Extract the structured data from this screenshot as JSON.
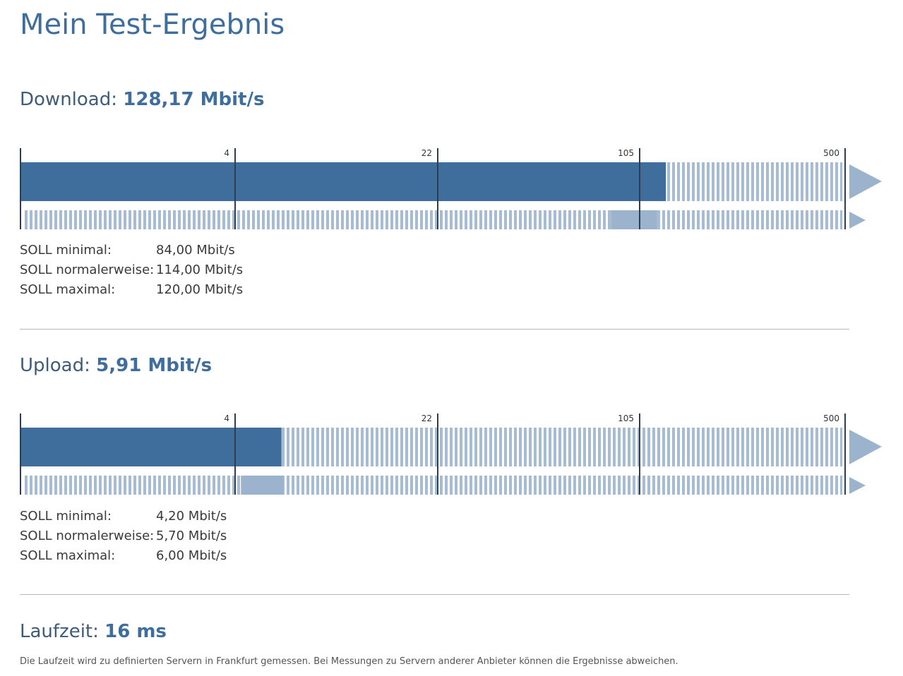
{
  "page": {
    "title": "Mein Test-Ergebnis"
  },
  "colors": {
    "measured": "#3f6e9c",
    "soll": "#9bb3cc",
    "hatch": "#a6bcd2",
    "tick": "#2d3e50"
  },
  "scale": {
    "type": "log",
    "ticks": [
      4,
      22,
      105,
      500
    ],
    "tick_labels": [
      "4",
      "22",
      "105",
      "500"
    ]
  },
  "download": {
    "label": "Download:",
    "value_text": "128,17 Mbit/s",
    "soll": [
      {
        "label": "SOLL minimal:",
        "value": "84,00 Mbit/s"
      },
      {
        "label": "SOLL normalerweise:",
        "value": "114,00 Mbit/s"
      },
      {
        "label": "SOLL maximal:",
        "value": "120,00 Mbit/s"
      }
    ]
  },
  "upload": {
    "label": "Upload:",
    "value_text": "5,91 Mbit/s",
    "soll": [
      {
        "label": "SOLL minimal:",
        "value": "4,20 Mbit/s"
      },
      {
        "label": "SOLL normalerweise:",
        "value": "5,70 Mbit/s"
      },
      {
        "label": "SOLL maximal:",
        "value": "6,00 Mbit/s"
      }
    ]
  },
  "latency": {
    "label": "Laufzeit:",
    "value_text": "16 ms",
    "note": "Die Laufzeit wird zu definierten Servern in Frankfurt gemessen. Bei Messungen zu Servern anderer Anbieter können die Ergebnisse abweichen."
  },
  "chart_data": [
    {
      "type": "bar",
      "scale": "log",
      "ticks": [
        4,
        22,
        105,
        500
      ],
      "series": [
        {
          "name": "",
          "values": [
            128.17
          ]
        },
        {
          "name": "SOLL",
          "range": [
            84.0,
            120.0
          ]
        }
      ]
    },
    {
      "type": "bar",
      "scale": "log",
      "ticks": [
        4,
        22,
        105,
        500
      ],
      "series": [
        {
          "name": "",
          "values": [
            5.91
          ]
        },
        {
          "name": "SOLL",
          "range": [
            4.2,
            6.0
          ]
        }
      ]
    }
  ]
}
